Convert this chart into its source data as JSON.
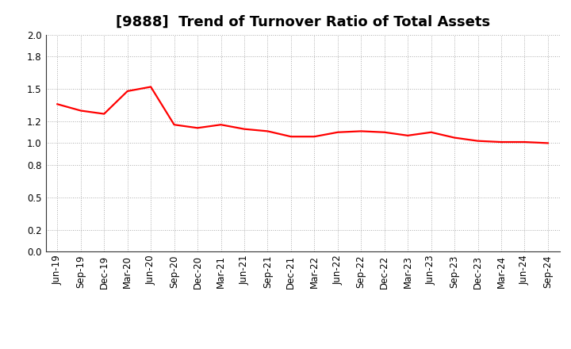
{
  "title": "[9888]  Trend of Turnover Ratio of Total Assets",
  "labels": [
    "Jun-19",
    "Sep-19",
    "Dec-19",
    "Mar-20",
    "Jun-20",
    "Sep-20",
    "Dec-20",
    "Mar-21",
    "Jun-21",
    "Sep-21",
    "Dec-21",
    "Mar-22",
    "Jun-22",
    "Sep-22",
    "Dec-22",
    "Mar-23",
    "Jun-23",
    "Sep-23",
    "Dec-23",
    "Mar-24",
    "Jun-24",
    "Sep-24"
  ],
  "values": [
    1.36,
    1.3,
    1.27,
    1.48,
    1.52,
    1.17,
    1.14,
    1.17,
    1.13,
    1.11,
    1.06,
    1.06,
    1.1,
    1.11,
    1.1,
    1.07,
    1.1,
    1.05,
    1.02,
    1.01,
    1.01,
    1.0
  ],
  "line_color": "#FF0000",
  "line_width": 1.6,
  "ylim": [
    0.0,
    2.0
  ],
  "yticks": [
    0.0,
    0.2,
    0.5,
    0.8,
    1.0,
    1.2,
    1.5,
    1.8,
    2.0
  ],
  "background_color": "#FFFFFF",
  "grid_color": "#AAAAAA",
  "title_fontsize": 13,
  "tick_fontsize": 8.5
}
